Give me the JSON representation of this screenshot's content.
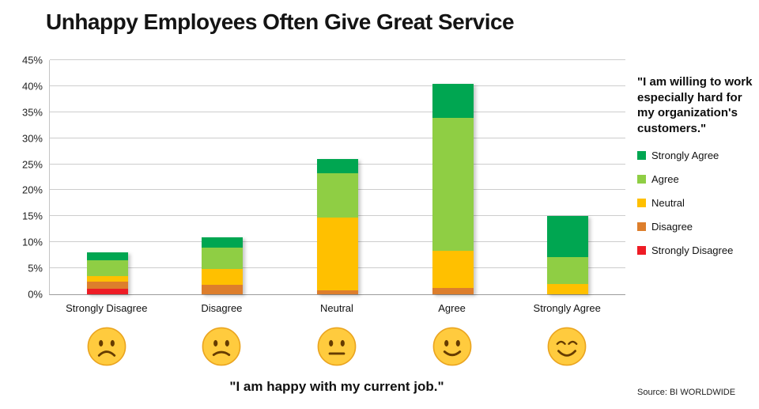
{
  "source": "Source: BI WORLDWIDE",
  "faces": [
    {
      "type": "frown",
      "name": "frowning-face"
    },
    {
      "type": "slight-frown",
      "name": "slightly-frowning-face"
    },
    {
      "type": "neutral",
      "name": "neutral-face"
    },
    {
      "type": "slight-smile",
      "name": "slightly-smiling-face"
    },
    {
      "type": "happy",
      "name": "smiling-face"
    }
  ],
  "chart_data": {
    "type": "bar",
    "subtype": "stacked",
    "title": "Unhappy Employees Often Give Great Service",
    "categories": [
      "Strongly Disagree",
      "Disagree",
      "Neutral",
      "Agree",
      "Strongly Agree"
    ],
    "series": [
      {
        "name": "Strongly Disagree",
        "color": "#ee1c25",
        "values": [
          1.0,
          0,
          0,
          0,
          0
        ]
      },
      {
        "name": "Disagree",
        "color": "#dd7e2c",
        "values": [
          1.5,
          1.8,
          0.8,
          1.2,
          0
        ]
      },
      {
        "name": "Neutral",
        "color": "#ffc000",
        "values": [
          1.0,
          3.0,
          14.0,
          7.2,
          2.0
        ]
      },
      {
        "name": "Agree",
        "color": "#8fce44",
        "values": [
          3.0,
          4.2,
          8.5,
          25.5,
          5.2
        ]
      },
      {
        "name": "Strongly Agree",
        "color": "#00a651",
        "values": [
          1.5,
          2.0,
          2.7,
          6.6,
          7.8
        ]
      }
    ],
    "bar_totals": [
      8.0,
      11.0,
      26.0,
      40.5,
      15.0
    ],
    "ylim": [
      0,
      45
    ],
    "ytick_step": 5,
    "ytick_labels": [
      "0%",
      "5%",
      "10%",
      "15%",
      "20%",
      "25%",
      "30%",
      "35%",
      "40%",
      "45%"
    ],
    "grid": "horizontal",
    "legend_position": "right",
    "legend_title": "\"I am willing to work especially hard for my organization's customers.\"",
    "legend_order": [
      "Strongly Agree",
      "Agree",
      "Neutral",
      "Disagree",
      "Strongly Disagree"
    ],
    "xlabel_quote": "\"I am happy with my current job.\""
  }
}
